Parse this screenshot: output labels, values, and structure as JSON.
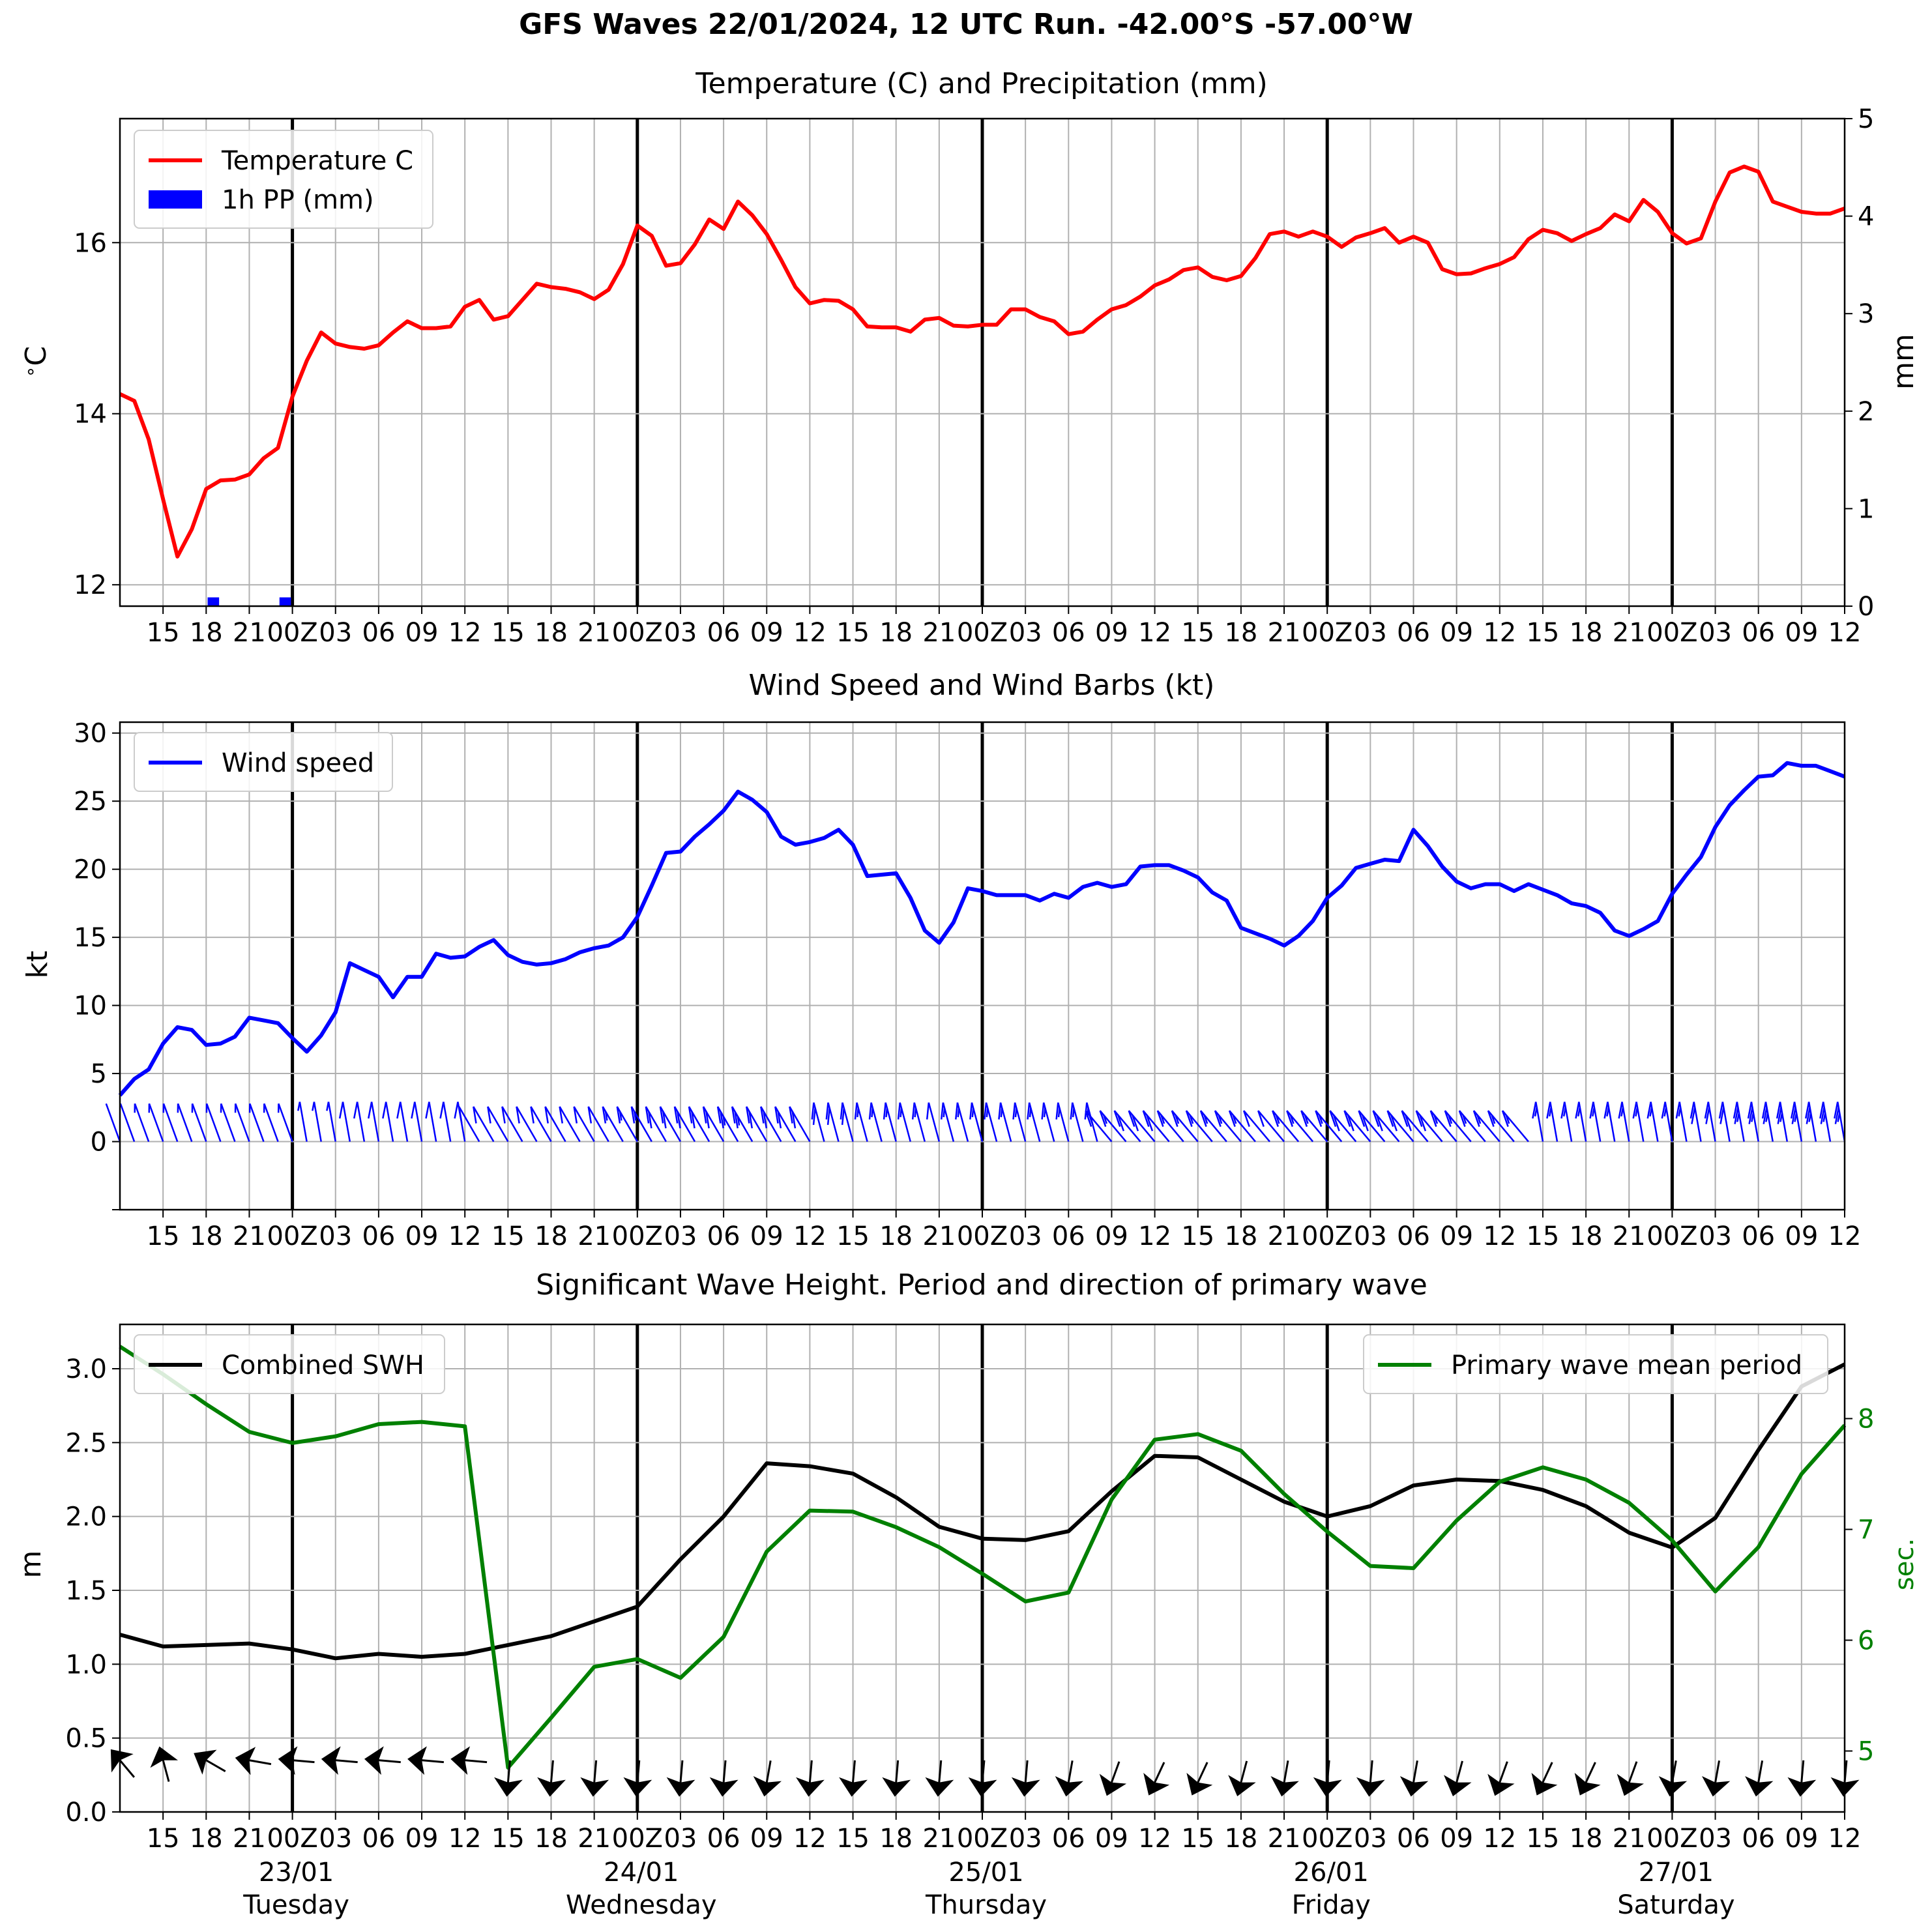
{
  "suptitle": "GFS Waves 22/01/2024, 12 UTC Run. -42.00°S -57.00°W",
  "x_tick_labels": [
    "15",
    "18",
    "21",
    "00Z",
    "03",
    "06",
    "09",
    "12",
    "15",
    "18",
    "21",
    "00Z",
    "03",
    "06",
    "09",
    "12",
    "15",
    "18",
    "21",
    "00Z",
    "03",
    "06",
    "09",
    "12",
    "15",
    "18",
    "21",
    "00Z",
    "03",
    "06",
    "09",
    "12",
    "15",
    "18",
    "21",
    "00Z",
    "03",
    "06",
    "09",
    "12"
  ],
  "day_labels": [
    {
      "date": "23/01",
      "weekday": "Tuesday"
    },
    {
      "date": "24/01",
      "weekday": "Wednesday"
    },
    {
      "date": "25/01",
      "weekday": "Thursday"
    },
    {
      "date": "26/01",
      "weekday": "Friday"
    },
    {
      "date": "27/01",
      "weekday": "Saturday"
    }
  ],
  "colors": {
    "temperature": "#ff0000",
    "precip": "#0000ff",
    "wind": "#0000ff",
    "swh": "#000000",
    "period": "#008000",
    "grid": "#b0b0b0"
  },
  "chart_data": [
    {
      "type": "line",
      "title": "Temperature (C) and Precipitation (mm)",
      "x_range_hours": [
        12,
        132
      ],
      "x_unit": "hours after 22/01/2024 00Z",
      "ylabel": "$^\\circ$C",
      "ylim": [
        11.75,
        17.45
      ],
      "yticks": [
        12,
        14,
        16
      ],
      "y2label": "mm",
      "y2lim": [
        0,
        5
      ],
      "y2ticks": [
        0,
        1,
        2,
        3,
        4,
        5
      ],
      "grid": true,
      "legend_position": "upper-left",
      "series": [
        {
          "name": "Temperature C",
          "x_start": 12,
          "x_step": 1,
          "values": [
            14.23,
            14.15,
            13.7,
            13.0,
            12.33,
            12.65,
            13.12,
            13.22,
            13.23,
            13.29,
            13.48,
            13.6,
            14.2,
            14.62,
            14.95,
            14.82,
            14.78,
            14.76,
            14.8,
            14.95,
            15.08,
            15.0,
            15.0,
            15.02,
            15.25,
            15.33,
            15.1,
            15.14,
            15.33,
            15.52,
            15.48,
            15.46,
            15.42,
            15.34,
            15.45,
            15.75,
            16.2,
            16.08,
            15.73,
            15.76,
            15.98,
            16.27,
            16.16,
            16.48,
            16.32,
            16.1,
            15.8,
            15.48,
            15.29,
            15.33,
            15.32,
            15.22,
            15.02,
            15.01,
            15.01,
            14.96,
            15.1,
            15.12,
            15.03,
            15.02,
            15.04,
            15.04,
            15.22,
            15.22,
            15.13,
            15.08,
            14.93,
            14.96,
            15.1,
            15.22,
            15.27,
            15.37,
            15.5,
            15.57,
            15.68,
            15.71,
            15.6,
            15.56,
            15.61,
            15.82,
            16.1,
            16.13,
            16.07,
            16.13,
            16.07,
            15.95,
            16.06,
            16.11,
            16.17,
            16.0,
            16.07,
            16.0,
            15.69,
            15.63,
            15.64,
            15.7,
            15.75,
            15.83,
            16.04,
            16.15,
            16.11,
            16.02,
            16.1,
            16.17,
            16.33,
            16.25,
            16.5,
            16.36,
            16.11,
            15.99,
            16.05,
            16.48,
            16.82,
            16.89,
            16.83,
            16.48,
            16.42,
            16.36,
            16.34,
            16.34,
            16.4
          ]
        },
        {
          "name": "1h PP (mm)",
          "type": "bar",
          "bars": [
            {
              "x": 18.5,
              "value": 0.05
            },
            {
              "x": 23.5,
              "value": 0.05
            }
          ]
        }
      ]
    },
    {
      "type": "line",
      "title": "Wind Speed and Wind Barbs (kt)",
      "x_range_hours": [
        12,
        132
      ],
      "ylabel": "kt",
      "ylim": [
        -5,
        30.8
      ],
      "yticks": [
        0,
        5,
        10,
        15,
        20,
        25,
        30
      ],
      "grid": true,
      "legend_position": "upper-left",
      "series": [
        {
          "name": "Wind speed",
          "x_start": 12,
          "x_step": 1,
          "values": [
            3.4,
            4.6,
            5.3,
            7.2,
            8.4,
            8.2,
            7.1,
            7.2,
            7.7,
            9.1,
            8.9,
            8.7,
            7.6,
            6.6,
            7.8,
            9.5,
            13.1,
            12.6,
            12.1,
            10.6,
            12.1,
            12.1,
            13.8,
            13.5,
            13.6,
            14.3,
            14.8,
            13.7,
            13.2,
            13.0,
            13.1,
            13.4,
            13.9,
            14.2,
            14.4,
            15.0,
            16.5,
            18.8,
            21.2,
            21.3,
            22.4,
            23.3,
            24.3,
            25.7,
            25.1,
            24.2,
            22.4,
            21.8,
            22.0,
            22.3,
            22.9,
            21.8,
            19.5,
            19.6,
            19.7,
            17.9,
            15.5,
            14.6,
            16.1,
            18.6,
            18.4,
            18.1,
            18.1,
            18.1,
            17.7,
            18.2,
            17.9,
            18.7,
            19.0,
            18.7,
            18.9,
            20.2,
            20.3,
            20.3,
            19.9,
            19.4,
            18.3,
            17.7,
            15.7,
            15.3,
            14.9,
            14.4,
            15.1,
            16.2,
            17.9,
            18.8,
            20.1,
            20.4,
            20.7,
            20.6,
            22.9,
            21.7,
            20.2,
            19.1,
            18.6,
            18.9,
            18.9,
            18.4,
            18.9,
            18.5,
            18.1,
            17.5,
            17.3,
            16.8,
            15.5,
            15.1,
            15.6,
            16.2,
            18.2,
            19.6,
            20.9,
            23.1,
            24.7,
            25.8,
            26.8,
            26.9,
            27.8,
            27.6,
            27.6,
            27.2,
            26.8
          ]
        },
        {
          "name": "wind barbs",
          "type": "barbs",
          "x_start": 12,
          "x_step": 1,
          "direction_deg_by_segment": [
            {
              "from": 12,
              "to": 24,
              "deg": 340
            },
            {
              "from": 24,
              "to": 36,
              "deg": 350
            },
            {
              "from": 36,
              "to": 60,
              "deg": 330
            },
            {
              "from": 60,
              "to": 80,
              "deg": 345
            },
            {
              "from": 80,
              "to": 110,
              "deg": 320
            },
            {
              "from": 110,
              "to": 132,
              "deg": 350
            }
          ]
        }
      ]
    },
    {
      "type": "line",
      "title": "Significant Wave Height. Period and direction of primary wave",
      "x_range_hours": [
        12,
        132
      ],
      "ylabel": "m",
      "ylim": [
        0,
        3.3
      ],
      "yticks": [
        0.0,
        0.5,
        1.0,
        1.5,
        2.0,
        2.5,
        3.0
      ],
      "y2label": "sec.",
      "y2lim": [
        4.45,
        8.85
      ],
      "y2ticks": [
        5,
        6,
        7,
        8
      ],
      "grid": true,
      "legends": [
        {
          "position": "upper-left",
          "entries": [
            "Combined SWH"
          ]
        },
        {
          "position": "upper-right",
          "entries": [
            "Primary wave mean period"
          ]
        }
      ],
      "series": [
        {
          "name": "Combined SWH",
          "x_start": 12,
          "x_step": 3,
          "values": [
            1.2,
            1.12,
            1.13,
            1.14,
            1.1,
            1.04,
            1.07,
            1.05,
            1.07,
            1.13,
            1.19,
            1.29,
            1.39,
            1.71,
            2.0,
            2.36,
            2.34,
            2.29,
            2.13,
            1.93,
            1.85,
            1.84,
            1.9,
            2.17,
            2.41,
            2.4,
            2.25,
            2.1,
            2.0,
            2.07,
            2.21,
            2.25,
            2.24,
            2.18,
            2.07,
            1.89,
            1.79,
            1.99,
            2.45,
            2.88,
            3.03
          ]
        },
        {
          "name": "Primary wave mean period",
          "axis": "right",
          "x_start": 12,
          "x_step": 3,
          "values": [
            8.65,
            8.4,
            8.13,
            7.88,
            7.78,
            7.84,
            7.95,
            7.97,
            7.93,
            4.85,
            5.3,
            5.76,
            5.83,
            5.66,
            6.03,
            6.8,
            7.17,
            7.16,
            7.02,
            6.84,
            6.6,
            6.35,
            6.43,
            7.27,
            7.81,
            7.86,
            7.71,
            7.32,
            6.98,
            6.67,
            6.65,
            7.08,
            7.43,
            7.56,
            7.45,
            7.24,
            6.9,
            6.44,
            6.84,
            7.5,
            7.94
          ]
        },
        {
          "name": "primary wave direction",
          "type": "arrows",
          "x_start": 12,
          "x_step": 3,
          "direction_deg": [
            140,
            165,
            120,
            100,
            95,
            95,
            95,
            95,
            95,
            5,
            5,
            5,
            5,
            5,
            5,
            10,
            5,
            5,
            5,
            5,
            5,
            5,
            10,
            20,
            25,
            25,
            15,
            10,
            5,
            5,
            10,
            15,
            20,
            25,
            25,
            20,
            10,
            10,
            10,
            5,
            5
          ]
        }
      ]
    }
  ]
}
